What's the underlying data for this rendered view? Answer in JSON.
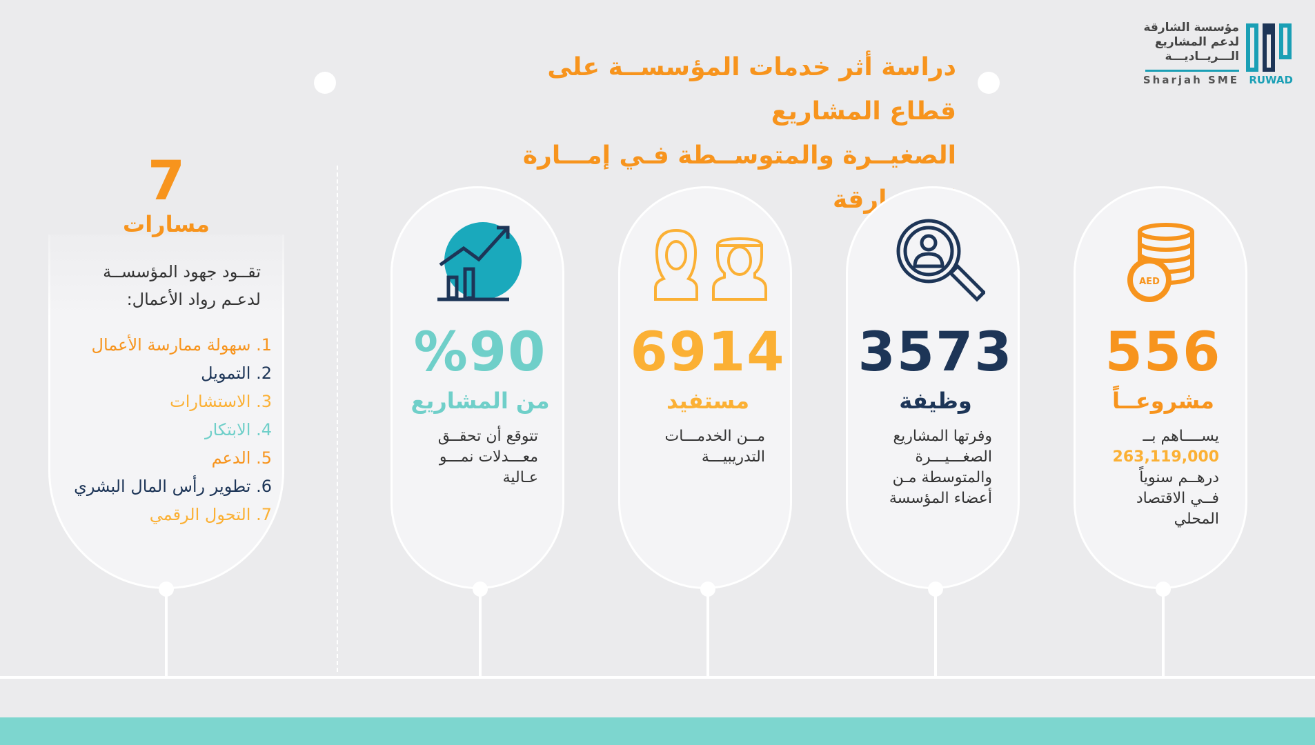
{
  "header": {
    "title_line1": "دراسة أثر خدمات المؤسســة على قطاع المشاريع",
    "title_line2": "الصغيــرة والمتوســطة فـي إمـــارة الشـــارقة"
  },
  "logo": {
    "arabic_line1": "مؤسسة الشارقة",
    "arabic_line2": "لدعم المشاريع",
    "arabic_line3": "الـــريــاديـــة",
    "english": "Sharjah SME",
    "brand": "RUWAD",
    "colors": {
      "teal": "#1a9fb5",
      "grey": "#444444"
    }
  },
  "cards": [
    {
      "icon": "coins-icon",
      "number": "556",
      "label": "مشروعــاً",
      "desc_line1": "يســــاهم بــ",
      "desc_highlight": "263,119,000",
      "desc_line3": "درهــم سنوياً",
      "desc_line4": "فــي الاقتصاد",
      "desc_line5": "المحلي",
      "coin_label": "AED",
      "color": "#f7941d"
    },
    {
      "icon": "magnifier-person-icon",
      "number": "3573",
      "label": "وظيفة",
      "desc_line1": "وفرتها المشاريع",
      "desc_line2": "الصغـــيـــرة",
      "desc_line3": "والمتوسطة مـن",
      "desc_line4": "أعضاء المؤسسة",
      "color": "#1d3557"
    },
    {
      "icon": "people-icon",
      "number": "6914",
      "label": "مستفيد",
      "desc_line1": "مــن الخدمـــات",
      "desc_line2": "التدريبيـــة",
      "color": "#fbb034"
    },
    {
      "icon": "growth-chart-icon",
      "number": "%90",
      "label": "من المشاريع",
      "desc_line1": "تتوقع أن تحقــق",
      "desc_line2": "معـــدلات نمـــو",
      "desc_line3": "عـالية",
      "color": "#6fcfc9"
    }
  ],
  "tracks": {
    "count": "7",
    "label": "مسارات",
    "intro_line1": "تقــود جهود المؤسســة",
    "intro_line2": "لدعـم رواد الأعمال:",
    "items": [
      {
        "text": "1. سهولة ممارسة الأعمال",
        "color": "#f7941d"
      },
      {
        "text": "2. التمويل",
        "color": "#1d3557"
      },
      {
        "text": "3. الاستشارات",
        "color": "#fbb034"
      },
      {
        "text": "4. الابتكار",
        "color": "#6fcfc9"
      },
      {
        "text": "5. الدعم",
        "color": "#f7941d"
      },
      {
        "text": "6. تطوير رأس المال البشري",
        "color": "#1d3557"
      },
      {
        "text": "7. التحول الرقمي",
        "color": "#fbb034"
      }
    ]
  }
}
